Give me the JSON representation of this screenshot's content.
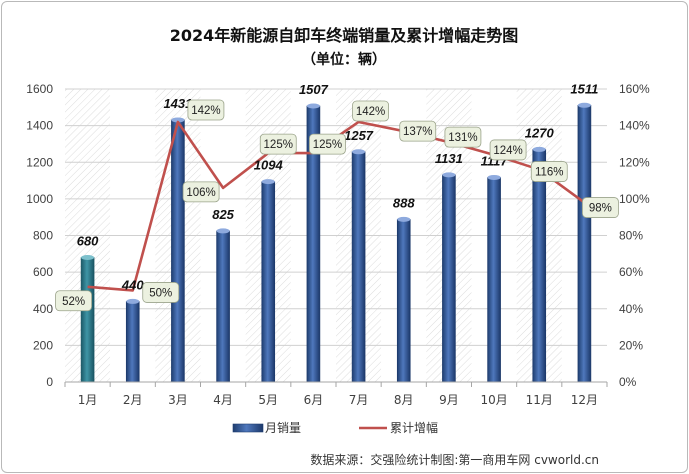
{
  "chart_data": {
    "type": "bar",
    "title": "2024年新能源自卸车终端销量及累计增幅走势图",
    "subtitle": "（单位：辆）",
    "categories": [
      "1月",
      "2月",
      "3月",
      "4月",
      "5月",
      "6月",
      "7月",
      "8月",
      "9月",
      "10月",
      "11月",
      "12月"
    ],
    "series": [
      {
        "name": "月销量",
        "type": "bar",
        "axis": "left",
        "values": [
          680,
          440,
          1431,
          825,
          1094,
          1507,
          1257,
          888,
          1131,
          1117,
          1270,
          1511
        ]
      },
      {
        "name": "累计增幅",
        "type": "line",
        "axis": "right",
        "unit": "%",
        "values": [
          52,
          50,
          142,
          106,
          125,
          125,
          142,
          137,
          131,
          124,
          116,
          98
        ]
      }
    ],
    "y_left": {
      "min": 0,
      "max": 1600,
      "step": 200
    },
    "y_right": {
      "min": 0,
      "max": 160,
      "step": 20,
      "unit": "%"
    },
    "bar_color": "#2f5597",
    "first_bar_color": "#2e7a8a",
    "line_color": "#c0504d",
    "label_box_fill": "#ecf1e0",
    "legend_position": "bottom"
  },
  "source": "数据来源：交强险统计制图:第一商用车网 cvworld.cn"
}
